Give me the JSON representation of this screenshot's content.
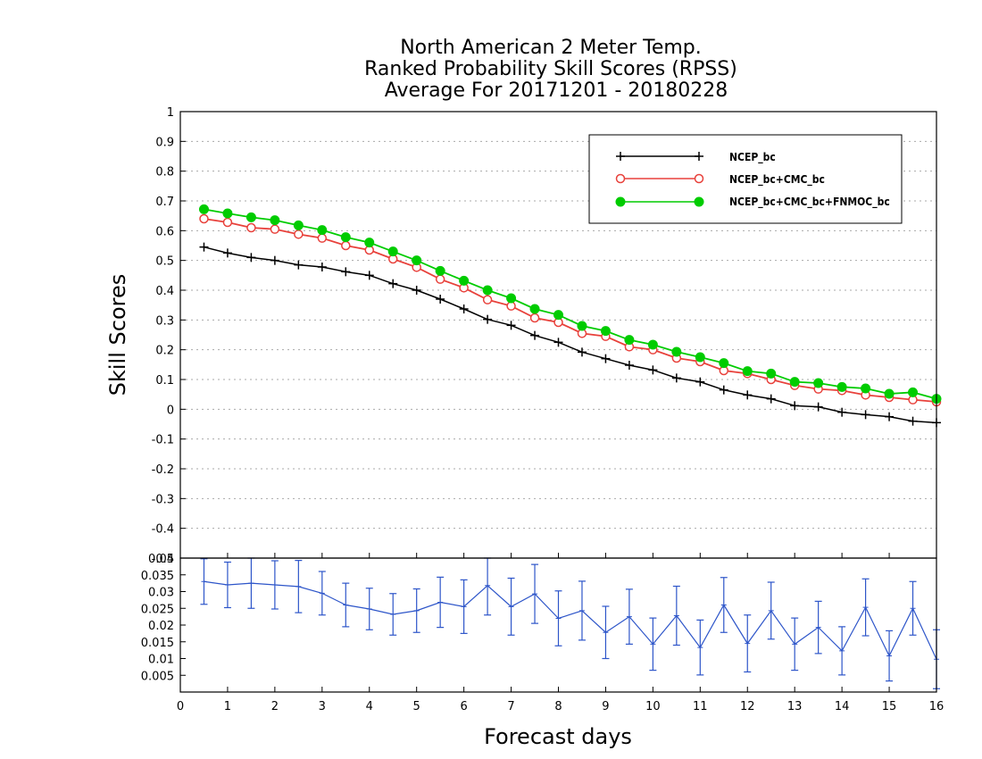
{
  "chart_data": [
    {
      "type": "line",
      "title": [
        "North American 2 Meter Temp.",
        "Ranked Probability Skill Scores (RPSS)",
        "Average For 20171201 - 20180228"
      ],
      "xlabel": "Forecast days",
      "ylabel": "Skill Scores",
      "xlim": [
        0,
        16
      ],
      "ylim": [
        -0.5,
        1
      ],
      "xticks": [
        "0",
        "1",
        "2",
        "3",
        "4",
        "5",
        "6",
        "7",
        "8",
        "9",
        "10",
        "11",
        "12",
        "13",
        "14",
        "15",
        "16"
      ],
      "yticks": [
        "-0.5",
        "-0.4",
        "-0.3",
        "-0.2",
        "-0.1",
        "0",
        "0.1",
        "0.2",
        "0.3",
        "0.4",
        "0.5",
        "0.6",
        "0.7",
        "0.8",
        "0.9",
        "1"
      ],
      "grid": true,
      "legend_position": "top-right",
      "x": [
        0.5,
        1,
        1.5,
        2,
        2.5,
        3,
        3.5,
        4,
        4.5,
        5,
        5.5,
        6,
        6.5,
        7,
        7.5,
        8,
        8.5,
        9,
        9.5,
        10,
        10.5,
        11,
        11.5,
        12,
        12.5,
        13,
        13.5,
        14,
        14.5,
        15,
        15.5,
        16
      ],
      "series": [
        {
          "name": "NCEP_bc",
          "color": "#000000",
          "marker": "plus",
          "values": [
            0.545,
            0.525,
            0.51,
            0.5,
            0.485,
            0.478,
            0.462,
            0.45,
            0.422,
            0.4,
            0.37,
            0.337,
            0.302,
            0.282,
            0.248,
            0.225,
            0.192,
            0.17,
            0.148,
            0.132,
            0.105,
            0.092,
            0.065,
            0.048,
            0.035,
            0.012,
            0.008,
            -0.01,
            -0.018,
            -0.025,
            -0.04,
            -0.045
          ]
        },
        {
          "name": "NCEP_bc+CMC_bc",
          "color": "#e8413b",
          "marker": "open-circle",
          "values": [
            0.64,
            0.628,
            0.61,
            0.605,
            0.588,
            0.575,
            0.55,
            0.535,
            0.505,
            0.477,
            0.437,
            0.408,
            0.368,
            0.347,
            0.307,
            0.292,
            0.255,
            0.245,
            0.21,
            0.2,
            0.172,
            0.16,
            0.13,
            0.12,
            0.1,
            0.08,
            0.068,
            0.063,
            0.048,
            0.04,
            0.032,
            0.025
          ]
        },
        {
          "name": "NCEP_bc+CMC_bc+FNMOC_bc",
          "color": "#00cc00",
          "marker": "filled-circle",
          "values": [
            0.672,
            0.658,
            0.645,
            0.635,
            0.618,
            0.602,
            0.578,
            0.56,
            0.53,
            0.5,
            0.465,
            0.432,
            0.4,
            0.373,
            0.337,
            0.317,
            0.28,
            0.263,
            0.233,
            0.217,
            0.193,
            0.175,
            0.155,
            0.128,
            0.12,
            0.092,
            0.088,
            0.075,
            0.07,
            0.052,
            0.057,
            0.035
          ]
        }
      ]
    },
    {
      "type": "line",
      "xlim": [
        0,
        16
      ],
      "ylim": [
        0,
        0.04
      ],
      "yticks": [
        "0.005",
        "0.01",
        "0.015",
        "0.02",
        "0.025",
        "0.03",
        "0.035",
        "0.04"
      ],
      "xlabel": "Forecast days",
      "grid": false,
      "x": [
        0.5,
        1,
        1.5,
        2,
        2.5,
        3,
        3.5,
        4,
        4.5,
        5,
        5.5,
        6,
        6.5,
        7,
        7.5,
        8,
        8.5,
        9,
        9.5,
        10,
        10.5,
        11,
        11.5,
        12,
        12.5,
        13,
        13.5,
        14,
        14.5,
        15,
        15.5,
        16
      ],
      "series": [
        {
          "color": "#2d55c9",
          "values": [
            0.033,
            0.032,
            0.0325,
            0.032,
            0.0315,
            0.0295,
            0.026,
            0.0248,
            0.0232,
            0.0243,
            0.0268,
            0.0255,
            0.0318,
            0.0255,
            0.0293,
            0.022,
            0.0243,
            0.0178,
            0.0225,
            0.0143,
            0.0228,
            0.0133,
            0.026,
            0.0145,
            0.0243,
            0.0143,
            0.0193,
            0.0123,
            0.0253,
            0.0108,
            0.025,
            0.0098
          ],
          "error": [
            0.0068,
            0.0068,
            0.0075,
            0.0072,
            0.0078,
            0.0065,
            0.0065,
            0.0062,
            0.0062,
            0.0065,
            0.0075,
            0.008,
            0.0088,
            0.0085,
            0.0088,
            0.0082,
            0.0088,
            0.0078,
            0.0082,
            0.0078,
            0.0088,
            0.0082,
            0.0082,
            0.0085,
            0.0085,
            0.0078,
            0.0078,
            0.0072,
            0.0085,
            0.0075,
            0.008,
            0.0088
          ]
        }
      ]
    }
  ]
}
